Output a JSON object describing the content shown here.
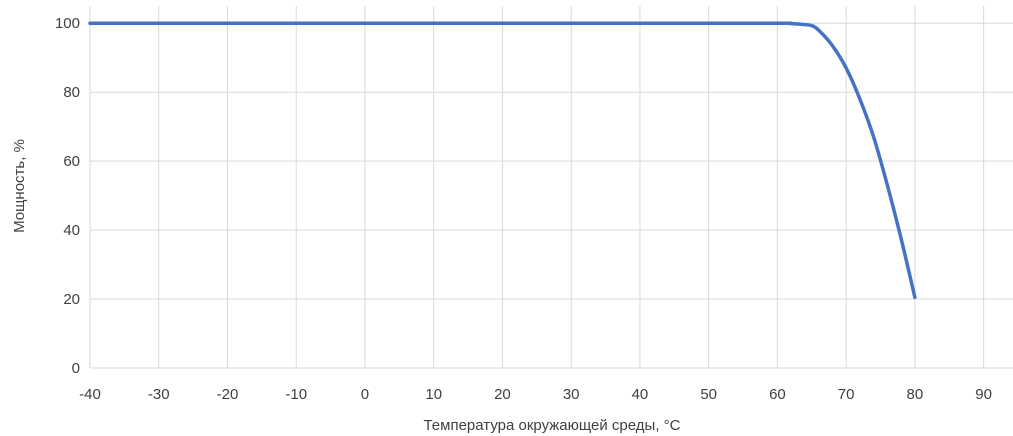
{
  "chart_data": {
    "type": "line",
    "xlabel": "Температура окружающей среды, °C",
    "ylabel": "Мощность, %",
    "xlim": [
      -40,
      95
    ],
    "ylim": [
      0,
      105
    ],
    "x_ticks": [
      -40,
      -30,
      -20,
      -10,
      0,
      10,
      20,
      30,
      40,
      50,
      60,
      70,
      80,
      90
    ],
    "y_ticks": [
      0,
      20,
      40,
      60,
      80,
      100
    ],
    "grid": true,
    "legend": "none",
    "series": [
      {
        "color": "#4472c4",
        "x": [
          -40,
          0,
          40,
          60,
          62,
          64,
          65,
          66,
          68,
          70,
          72,
          74,
          76,
          78,
          80
        ],
        "y": [
          100,
          100,
          100,
          100,
          99.9,
          99.6,
          99.3,
          98,
          93.5,
          87,
          78,
          67,
          53,
          37.5,
          20.5
        ]
      }
    ]
  }
}
